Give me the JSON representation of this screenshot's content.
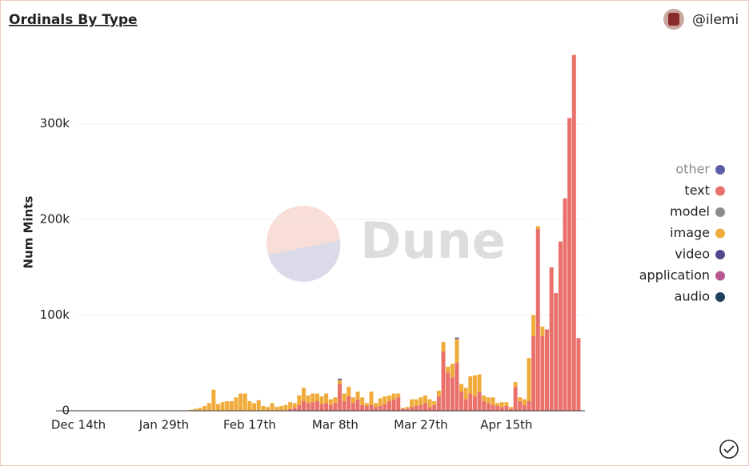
{
  "header": {
    "title": "Ordinals By Type",
    "user": "@ilemi"
  },
  "watermark": "Dune",
  "chart_data": {
    "type": "stacked_bar",
    "y_label": "Num Mints",
    "categories": [
      "Dec 14th",
      null,
      null,
      null,
      null,
      null,
      null,
      null,
      null,
      null,
      null,
      null,
      null,
      null,
      null,
      null,
      null,
      null,
      null,
      "Jan 29th",
      null,
      null,
      null,
      null,
      null,
      null,
      null,
      null,
      null,
      null,
      null,
      null,
      null,
      null,
      null,
      null,
      null,
      null,
      "Feb 17th",
      null,
      null,
      null,
      null,
      null,
      null,
      null,
      null,
      null,
      null,
      null,
      null,
      null,
      null,
      null,
      null,
      null,
      null,
      "Mar 8th",
      null,
      null,
      null,
      null,
      null,
      null,
      null,
      null,
      null,
      null,
      null,
      null,
      null,
      null,
      null,
      null,
      null,
      null,
      "Mar 27th",
      null,
      null,
      null,
      null,
      null,
      null,
      null,
      null,
      null,
      null,
      null,
      null,
      null,
      null,
      null,
      null,
      null,
      null,
      "Apr 15th",
      null,
      null,
      null,
      null,
      null,
      null,
      null,
      null,
      null,
      null,
      null,
      null,
      null,
      null,
      null,
      null
    ],
    "series": [
      {
        "name": "other",
        "color": "#5b5ea6",
        "values": [
          0,
          0,
          0,
          0,
          0,
          0,
          0,
          0,
          0,
          0,
          0,
          0,
          0,
          0,
          0,
          0,
          0,
          0,
          0,
          0,
          0,
          0,
          0,
          0,
          0,
          0,
          0,
          0,
          0,
          0,
          0,
          0,
          0,
          0,
          0,
          0,
          0,
          0,
          0,
          0,
          0,
          0,
          0,
          0,
          0,
          0,
          0,
          0,
          0,
          0,
          0,
          0,
          0,
          0,
          0,
          0,
          0,
          0,
          1500,
          0,
          0,
          0,
          0,
          0,
          0,
          0,
          0,
          0,
          0,
          0,
          0,
          0,
          0,
          0,
          0,
          0,
          0,
          0,
          0,
          0,
          0,
          0,
          0,
          0,
          1500,
          0,
          0,
          0,
          0,
          0,
          0,
          0,
          0,
          0,
          0,
          0,
          0,
          0,
          0,
          0,
          0,
          0,
          0,
          0,
          0,
          0,
          0,
          0,
          0,
          0,
          0,
          0
        ]
      },
      {
        "name": "text",
        "color": "#e9706b",
        "values": [
          0,
          0,
          0,
          0,
          0,
          0,
          0,
          0,
          0,
          0,
          0,
          0,
          0,
          0,
          0,
          0,
          0,
          0,
          0,
          0,
          0,
          0,
          0,
          0,
          0,
          0,
          0,
          0,
          0,
          0,
          0,
          0,
          0,
          0,
          0,
          0,
          0,
          0,
          0,
          0,
          0,
          0,
          0,
          0,
          0,
          0,
          0,
          2000,
          3000,
          6000,
          10000,
          8000,
          9000,
          10000,
          7000,
          8000,
          6000,
          8000,
          28000,
          10000,
          15000,
          8000,
          12000,
          6000,
          5000,
          6000,
          4000,
          5000,
          7000,
          10000,
          12000,
          14000,
          2000,
          2000,
          4000,
          5000,
          6000,
          8000,
          4000,
          6000,
          15000,
          62000,
          40000,
          35000,
          50000,
          20000,
          12000,
          18000,
          15000,
          20000,
          10000,
          8000,
          6000,
          5000,
          4000,
          5000,
          2000,
          25000,
          10000,
          6000,
          10000,
          78000,
          190000,
          78000,
          85000,
          150000,
          123000,
          177000,
          222000,
          306000,
          372000,
          76000
        ]
      },
      {
        "name": "model",
        "color": "#8c8c8c",
        "values": [
          0,
          0,
          0,
          0,
          0,
          0,
          0,
          0,
          0,
          0,
          0,
          0,
          0,
          0,
          0,
          0,
          0,
          0,
          0,
          0,
          0,
          0,
          0,
          0,
          0,
          0,
          0,
          0,
          0,
          0,
          0,
          0,
          0,
          0,
          0,
          0,
          0,
          0,
          0,
          0,
          0,
          0,
          0,
          0,
          0,
          0,
          0,
          0,
          0,
          0,
          0,
          0,
          0,
          0,
          0,
          0,
          0,
          0,
          0,
          0,
          0,
          0,
          0,
          0,
          0,
          0,
          0,
          0,
          0,
          0,
          0,
          0,
          0,
          0,
          0,
          0,
          0,
          0,
          0,
          0,
          0,
          0,
          0,
          0,
          0,
          0,
          0,
          0,
          0,
          0,
          0,
          0,
          0,
          0,
          0,
          0,
          0,
          0,
          0,
          0,
          0,
          0,
          0,
          0,
          0,
          0,
          0,
          0,
          0,
          0,
          0,
          0
        ]
      },
      {
        "name": "image",
        "color": "#f0ac3a",
        "values": [
          0,
          0,
          0,
          0,
          0,
          0,
          0,
          0,
          0,
          0,
          0,
          0,
          0,
          0,
          0,
          0,
          0,
          0,
          0,
          0,
          0,
          0,
          0,
          0,
          500,
          1000,
          2000,
          3000,
          5000,
          8000,
          22000,
          7000,
          9000,
          10000,
          10000,
          14000,
          18000,
          18000,
          10000,
          8000,
          11000,
          5000,
          4000,
          8000,
          4000,
          5000,
          6000,
          7000,
          5000,
          10000,
          14000,
          8000,
          9000,
          8000,
          8000,
          10000,
          6000,
          6000,
          4000,
          8000,
          10000,
          6000,
          8000,
          8000,
          3000,
          14000,
          4000,
          8000,
          8000,
          6000,
          6000,
          4000,
          1000,
          2000,
          8000,
          7000,
          8000,
          8000,
          8000,
          4000,
          6000,
          10000,
          6000,
          14000,
          25000,
          8000,
          12000,
          18000,
          22000,
          18000,
          6000,
          6000,
          8000,
          3000,
          5000,
          4000,
          2000,
          5000,
          4000,
          6000,
          45000,
          22000,
          3000,
          10000,
          0,
          0,
          0,
          0,
          0,
          0,
          0,
          0
        ]
      },
      {
        "name": "video",
        "color": "#4e4a8a",
        "values": [
          0,
          0,
          0,
          0,
          0,
          0,
          0,
          0,
          0,
          0,
          0,
          0,
          0,
          0,
          0,
          0,
          0,
          0,
          0,
          0,
          0,
          0,
          0,
          0,
          0,
          0,
          0,
          0,
          0,
          0,
          0,
          0,
          0,
          0,
          0,
          0,
          0,
          0,
          0,
          0,
          0,
          0,
          0,
          0,
          0,
          0,
          0,
          0,
          0,
          0,
          0,
          0,
          0,
          0,
          0,
          0,
          0,
          0,
          0,
          0,
          0,
          0,
          0,
          0,
          0,
          0,
          0,
          0,
          0,
          0,
          0,
          0,
          0,
          0,
          0,
          0,
          0,
          0,
          0,
          0,
          0,
          0,
          0,
          0,
          0,
          0,
          0,
          0,
          0,
          0,
          0,
          0,
          0,
          0,
          0,
          0,
          0,
          0,
          0,
          0,
          0,
          0,
          0,
          0,
          0,
          0,
          0,
          0,
          0,
          0,
          0,
          0
        ]
      },
      {
        "name": "application",
        "color": "#b85a91",
        "values": [
          0,
          0,
          0,
          0,
          0,
          0,
          0,
          0,
          0,
          0,
          0,
          0,
          0,
          0,
          0,
          0,
          0,
          0,
          0,
          0,
          0,
          0,
          0,
          0,
          0,
          0,
          0,
          0,
          0,
          0,
          0,
          0,
          0,
          0,
          0,
          0,
          0,
          0,
          0,
          0,
          0,
          0,
          0,
          0,
          0,
          0,
          0,
          0,
          0,
          0,
          0,
          0,
          0,
          0,
          0,
          0,
          0,
          0,
          0,
          0,
          0,
          0,
          0,
          0,
          0,
          0,
          0,
          0,
          0,
          0,
          0,
          0,
          0,
          0,
          0,
          0,
          0,
          0,
          0,
          0,
          0,
          0,
          0,
          0,
          0,
          0,
          0,
          0,
          0,
          0,
          0,
          0,
          0,
          0,
          0,
          0,
          0,
          0,
          0,
          0,
          0,
          0,
          0,
          0,
          0,
          0,
          0,
          0,
          0,
          0,
          0,
          0
        ]
      },
      {
        "name": "audio",
        "color": "#1f3f5f",
        "values": [
          0,
          0,
          0,
          0,
          0,
          0,
          0,
          0,
          0,
          0,
          0,
          0,
          0,
          0,
          0,
          0,
          0,
          0,
          0,
          0,
          0,
          0,
          0,
          0,
          0,
          0,
          0,
          0,
          0,
          0,
          0,
          0,
          0,
          0,
          0,
          0,
          0,
          0,
          0,
          0,
          0,
          0,
          0,
          0,
          0,
          0,
          0,
          0,
          0,
          0,
          0,
          0,
          0,
          0,
          0,
          0,
          0,
          0,
          0,
          0,
          0,
          0,
          0,
          0,
          0,
          0,
          0,
          0,
          0,
          0,
          0,
          0,
          0,
          0,
          0,
          0,
          0,
          0,
          0,
          0,
          0,
          0,
          0,
          0,
          0,
          0,
          0,
          0,
          0,
          0,
          0,
          0,
          0,
          0,
          0,
          0,
          0,
          0,
          0,
          0,
          0,
          0,
          0,
          0,
          0,
          0,
          0,
          0,
          0,
          0,
          0,
          0
        ]
      }
    ],
    "ylim": [
      0,
      375000
    ],
    "yticks": [
      {
        "value": 0,
        "label": "0"
      },
      {
        "value": 100000,
        "label": "100k"
      },
      {
        "value": 200000,
        "label": "200k"
      },
      {
        "value": 300000,
        "label": "300k"
      }
    ],
    "grid": true,
    "legend": "right"
  }
}
